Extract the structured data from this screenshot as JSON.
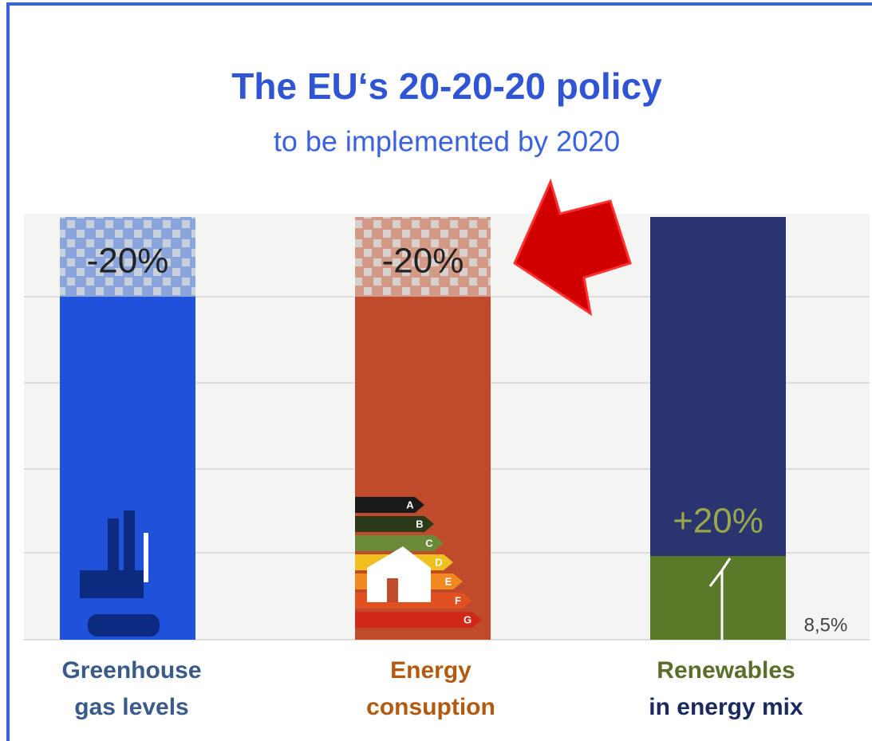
{
  "header": {
    "title": "The EU‘s 20-20-20 policy",
    "subtitle": "to be implemented by 2020"
  },
  "columns": [
    {
      "value_label": "-20%",
      "label": [
        "Greenhouse",
        "gas levels"
      ]
    },
    {
      "value_label": "-20%",
      "label": [
        "Energy",
        "consuption"
      ],
      "energy_classes": [
        "A",
        "B",
        "C",
        "D",
        "E",
        "F",
        "G"
      ]
    },
    {
      "value_label": "+20%",
      "baseline_label": "8,5%",
      "label": [
        "Renewables",
        "in energy mix"
      ]
    }
  ]
}
